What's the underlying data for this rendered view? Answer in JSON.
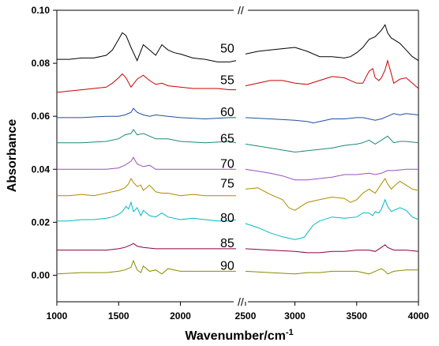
{
  "chart_data": {
    "type": "line",
    "xlabel": "Wavenumber/cm",
    "xlabel_superscript": "-1",
    "ylabel": "Absorbance",
    "xlim": [
      1000,
      4000
    ],
    "ylim": [
      -0.01,
      0.1
    ],
    "axis_break": [
      2450,
      2600
    ],
    "x_ticks": [
      1000,
      1500,
      2000,
      2500,
      3000,
      3500,
      4000
    ],
    "y_ticks": [
      0.0,
      0.02,
      0.04,
      0.06,
      0.08,
      0.1
    ],
    "y_tick_labels": [
      "0.00",
      "0.02",
      "0.04",
      "0.06",
      "0.08",
      "0.10"
    ],
    "break_marks": "//",
    "grid": false,
    "series": [
      {
        "name": "50",
        "color": "#000000",
        "x": [
          1000,
          1100,
          1200,
          1300,
          1400,
          1450,
          1500,
          1530,
          1560,
          1600,
          1650,
          1700,
          1750,
          1800,
          1850,
          1900,
          1950,
          2000,
          2100,
          2200,
          2300,
          2400,
          2450,
          2600,
          2700,
          2800,
          2900,
          3000,
          3100,
          3200,
          3300,
          3400,
          3450,
          3500,
          3550,
          3600,
          3650,
          3700,
          3730,
          3750,
          3780,
          3800,
          3850,
          3900,
          3950,
          4000
        ],
        "y": [
          0.0815,
          0.0815,
          0.082,
          0.082,
          0.083,
          0.085,
          0.089,
          0.0915,
          0.0905,
          0.086,
          0.081,
          0.087,
          0.085,
          0.083,
          0.087,
          0.085,
          0.084,
          0.0835,
          0.082,
          0.0815,
          0.0805,
          0.0805,
          0.081,
          0.0835,
          0.0845,
          0.085,
          0.0855,
          0.086,
          0.0845,
          0.0825,
          0.0825,
          0.082,
          0.0825,
          0.084,
          0.086,
          0.089,
          0.09,
          0.0925,
          0.0945,
          0.0915,
          0.0895,
          0.089,
          0.0875,
          0.085,
          0.0825,
          0.081
        ]
      },
      {
        "name": "55",
        "color": "#cc0000",
        "x": [
          1000,
          1100,
          1200,
          1300,
          1400,
          1450,
          1500,
          1530,
          1560,
          1600,
          1650,
          1700,
          1750,
          1800,
          1850,
          1900,
          2000,
          2100,
          2200,
          2300,
          2400,
          2450,
          2600,
          2700,
          2800,
          2900,
          3000,
          3100,
          3200,
          3300,
          3400,
          3450,
          3500,
          3550,
          3600,
          3630,
          3650,
          3680,
          3700,
          3730,
          3750,
          3780,
          3800,
          3850,
          3900,
          3950,
          4000
        ],
        "y": [
          0.069,
          0.0695,
          0.07,
          0.0705,
          0.071,
          0.0725,
          0.0745,
          0.076,
          0.0745,
          0.071,
          0.074,
          0.0755,
          0.0735,
          0.072,
          0.0725,
          0.0715,
          0.071,
          0.0705,
          0.0705,
          0.0705,
          0.07,
          0.07,
          0.0715,
          0.0725,
          0.0735,
          0.0735,
          0.0725,
          0.072,
          0.0735,
          0.075,
          0.0745,
          0.0735,
          0.0725,
          0.0725,
          0.077,
          0.078,
          0.0745,
          0.0735,
          0.0745,
          0.0775,
          0.081,
          0.076,
          0.0725,
          0.074,
          0.0745,
          0.0725,
          0.0705
        ]
      },
      {
        "name": "60",
        "color": "#1f4fa0",
        "x": [
          1000,
          1200,
          1400,
          1500,
          1550,
          1600,
          1620,
          1650,
          1700,
          1750,
          1800,
          1900,
          2000,
          2200,
          2400,
          2450,
          2600,
          2800,
          3000,
          3100,
          3150,
          3200,
          3300,
          3400,
          3500,
          3550,
          3600,
          3650,
          3700,
          3750,
          3800,
          3850,
          3900,
          4000
        ],
        "y": [
          0.0595,
          0.0595,
          0.06,
          0.06,
          0.0605,
          0.0615,
          0.063,
          0.0615,
          0.0605,
          0.06,
          0.0605,
          0.06,
          0.0595,
          0.059,
          0.0595,
          0.0595,
          0.0595,
          0.059,
          0.0585,
          0.058,
          0.0575,
          0.058,
          0.059,
          0.059,
          0.0595,
          0.0595,
          0.059,
          0.0585,
          0.059,
          0.06,
          0.061,
          0.0605,
          0.061,
          0.0605
        ]
      },
      {
        "name": "65",
        "color": "#1a8a7a",
        "x": [
          1000,
          1200,
          1400,
          1500,
          1550,
          1600,
          1620,
          1650,
          1700,
          1750,
          1800,
          1900,
          2000,
          2200,
          2400,
          2450,
          2600,
          2800,
          3000,
          3100,
          3200,
          3300,
          3400,
          3500,
          3550,
          3600,
          3650,
          3700,
          3750,
          3800,
          3850,
          3900,
          4000
        ],
        "y": [
          0.05,
          0.05,
          0.0505,
          0.0515,
          0.053,
          0.0535,
          0.055,
          0.053,
          0.0535,
          0.0525,
          0.0515,
          0.0515,
          0.0505,
          0.05,
          0.0505,
          0.05,
          0.0495,
          0.048,
          0.0465,
          0.047,
          0.0475,
          0.048,
          0.049,
          0.0495,
          0.05,
          0.051,
          0.0495,
          0.051,
          0.0525,
          0.05,
          0.0505,
          0.0505,
          0.05
        ]
      },
      {
        "name": "70",
        "color": "#9b4fc0",
        "x": [
          1000,
          1200,
          1400,
          1500,
          1550,
          1600,
          1620,
          1650,
          1700,
          1750,
          1800,
          1900,
          2000,
          2200,
          2400,
          2450,
          2600,
          2800,
          2900,
          3000,
          3100,
          3200,
          3300,
          3400,
          3500,
          3600,
          3650,
          3700,
          3750,
          3800,
          3900,
          4000
        ],
        "y": [
          0.04,
          0.04,
          0.04,
          0.0405,
          0.0415,
          0.043,
          0.0445,
          0.042,
          0.041,
          0.0415,
          0.04,
          0.04,
          0.04,
          0.04,
          0.04,
          0.04,
          0.04,
          0.0385,
          0.0375,
          0.036,
          0.036,
          0.0365,
          0.037,
          0.038,
          0.038,
          0.0385,
          0.038,
          0.0385,
          0.0395,
          0.0395,
          0.04,
          0.04
        ]
      },
      {
        "name": "75",
        "color": "#b08a00",
        "x": [
          1000,
          1100,
          1200,
          1300,
          1400,
          1450,
          1500,
          1550,
          1580,
          1600,
          1620,
          1650,
          1680,
          1700,
          1750,
          1800,
          1850,
          1900,
          2000,
          2100,
          2200,
          2300,
          2400,
          2450,
          2600,
          2700,
          2800,
          2900,
          2950,
          3000,
          3050,
          3100,
          3200,
          3300,
          3400,
          3450,
          3500,
          3550,
          3600,
          3650,
          3700,
          3730,
          3750,
          3780,
          3800,
          3850,
          3900,
          3950,
          4000
        ],
        "y": [
          0.03,
          0.03,
          0.0305,
          0.03,
          0.031,
          0.0315,
          0.032,
          0.033,
          0.0345,
          0.0365,
          0.035,
          0.0335,
          0.034,
          0.032,
          0.034,
          0.0315,
          0.031,
          0.031,
          0.03,
          0.0305,
          0.03,
          0.03,
          0.03,
          0.03,
          0.0325,
          0.033,
          0.0305,
          0.0285,
          0.0255,
          0.0245,
          0.026,
          0.0275,
          0.0285,
          0.0295,
          0.029,
          0.0275,
          0.0285,
          0.031,
          0.0325,
          0.031,
          0.0345,
          0.0365,
          0.0345,
          0.0325,
          0.0335,
          0.0355,
          0.034,
          0.0325,
          0.032
        ]
      },
      {
        "name": "80",
        "color": "#00b8c8",
        "x": [
          1000,
          1100,
          1200,
          1300,
          1400,
          1450,
          1500,
          1530,
          1560,
          1580,
          1600,
          1620,
          1650,
          1680,
          1700,
          1750,
          1800,
          1850,
          1900,
          2000,
          2100,
          2200,
          2300,
          2400,
          2450,
          2600,
          2700,
          2800,
          2900,
          3000,
          3050,
          3080,
          3100,
          3150,
          3200,
          3300,
          3400,
          3500,
          3550,
          3600,
          3630,
          3650,
          3680,
          3700,
          3730,
          3750,
          3780,
          3800,
          3850,
          3900,
          3950,
          4000
        ],
        "y": [
          0.0205,
          0.0205,
          0.021,
          0.021,
          0.0215,
          0.022,
          0.023,
          0.024,
          0.026,
          0.025,
          0.0275,
          0.024,
          0.0255,
          0.0225,
          0.0245,
          0.0225,
          0.022,
          0.0235,
          0.022,
          0.021,
          0.0215,
          0.021,
          0.0205,
          0.0205,
          0.021,
          0.0195,
          0.018,
          0.016,
          0.0145,
          0.0135,
          0.014,
          0.0145,
          0.016,
          0.019,
          0.0205,
          0.022,
          0.0215,
          0.022,
          0.0235,
          0.0235,
          0.0225,
          0.024,
          0.0235,
          0.025,
          0.0285,
          0.026,
          0.024,
          0.0245,
          0.0255,
          0.0245,
          0.022,
          0.021
        ]
      },
      {
        "name": "85",
        "color": "#8b0045",
        "x": [
          1000,
          1200,
          1400,
          1500,
          1550,
          1600,
          1620,
          1650,
          1700,
          1800,
          1900,
          2000,
          2200,
          2400,
          2450,
          2600,
          2800,
          3000,
          3100,
          3200,
          3300,
          3400,
          3500,
          3600,
          3650,
          3700,
          3730,
          3750,
          3800,
          3900,
          4000
        ],
        "y": [
          0.0095,
          0.0095,
          0.0095,
          0.01,
          0.0105,
          0.0115,
          0.012,
          0.011,
          0.0105,
          0.01,
          0.01,
          0.01,
          0.01,
          0.01,
          0.01,
          0.01,
          0.0095,
          0.009,
          0.0085,
          0.0085,
          0.009,
          0.009,
          0.0095,
          0.0095,
          0.009,
          0.0105,
          0.0115,
          0.0105,
          0.0095,
          0.0095,
          0.009
        ]
      },
      {
        "name": "90",
        "color": "#8a8a00",
        "x": [
          1000,
          1200,
          1400,
          1500,
          1550,
          1600,
          1620,
          1650,
          1680,
          1700,
          1750,
          1800,
          1850,
          1900,
          2000,
          2200,
          2400,
          2450,
          2600,
          2800,
          3000,
          3100,
          3200,
          3300,
          3400,
          3500,
          3600,
          3650,
          3700,
          3730,
          3750,
          3800,
          3900,
          4000
        ],
        "y": [
          0.0005,
          0.001,
          0.001,
          0.0015,
          0.002,
          0.003,
          0.0055,
          0.002,
          0.001,
          0.0035,
          0.0015,
          0.002,
          0.0005,
          0.0025,
          0.0015,
          0.0015,
          0.0015,
          0.0015,
          0.0015,
          0.001,
          0.0005,
          0.001,
          0.001,
          0.0015,
          0.0015,
          0.0015,
          0.0005,
          0.0015,
          0.0025,
          0.0015,
          0.0005,
          0.0015,
          0.002,
          0.002
        ]
      }
    ]
  }
}
